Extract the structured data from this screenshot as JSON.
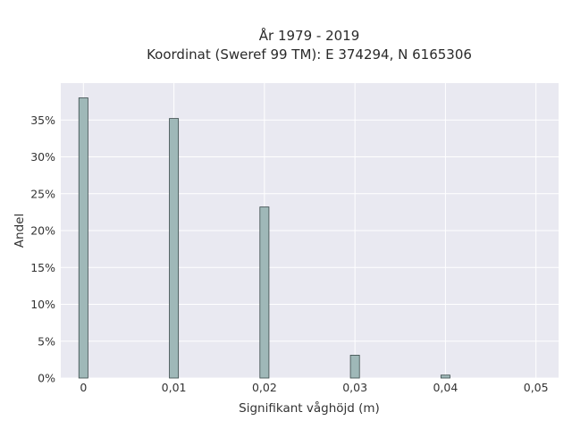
{
  "chart_data": {
    "type": "bar",
    "title": "År 1979 - 2019",
    "subtitle": "Koordinat (Sweref 99 TM): E 374294, N 6165306",
    "xlabel": "Signifikant våghöjd (m)",
    "ylabel": "Andel",
    "x": [
      0,
      0.01,
      0.02,
      0.03,
      0.04
    ],
    "values": [
      0.38,
      0.352,
      0.232,
      0.031,
      0.004
    ],
    "bar_width": 0.001,
    "xlim": [
      -0.0025,
      0.0525
    ],
    "ylim": [
      0,
      0.4
    ],
    "x_ticks": [
      0,
      0.01,
      0.02,
      0.03,
      0.04,
      0.05
    ],
    "x_tick_labels": [
      "0",
      "0,01",
      "0,02",
      "0,03",
      "0,04",
      "0,05"
    ],
    "y_ticks": [
      0,
      0.05,
      0.1,
      0.15,
      0.2,
      0.25,
      0.3,
      0.35
    ],
    "y_tick_labels": [
      "0%",
      "5%",
      "10%",
      "15%",
      "20%",
      "25%",
      "30%",
      "35%"
    ],
    "grid": true,
    "legend": "none",
    "colors": {
      "bar_fill": "#9fb8b8",
      "bar_stroke": "#3a4a4a",
      "plot_background": "#e9e9f1",
      "grid": "#ffffff"
    }
  }
}
